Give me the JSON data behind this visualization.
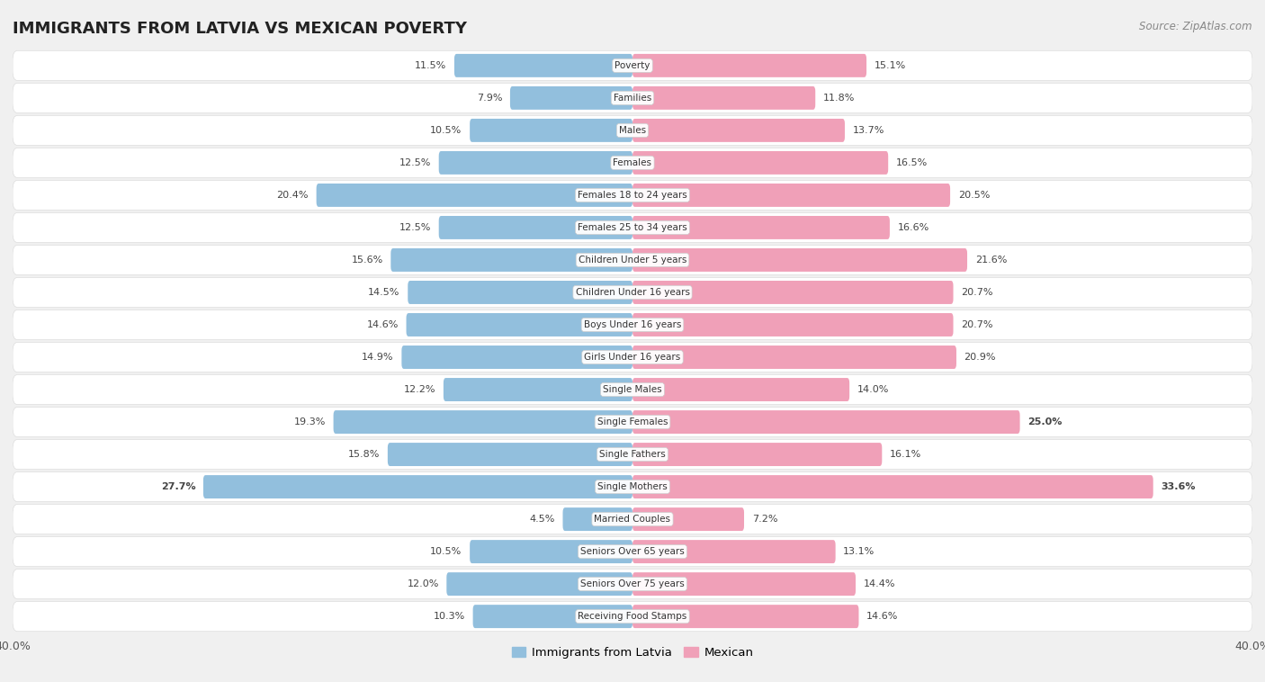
{
  "title": "IMMIGRANTS FROM LATVIA VS MEXICAN POVERTY",
  "source": "Source: ZipAtlas.com",
  "categories": [
    "Poverty",
    "Families",
    "Males",
    "Females",
    "Females 18 to 24 years",
    "Females 25 to 34 years",
    "Children Under 5 years",
    "Children Under 16 years",
    "Boys Under 16 years",
    "Girls Under 16 years",
    "Single Males",
    "Single Females",
    "Single Fathers",
    "Single Mothers",
    "Married Couples",
    "Seniors Over 65 years",
    "Seniors Over 75 years",
    "Receiving Food Stamps"
  ],
  "latvia_values": [
    11.5,
    7.9,
    10.5,
    12.5,
    20.4,
    12.5,
    15.6,
    14.5,
    14.6,
    14.9,
    12.2,
    19.3,
    15.8,
    27.7,
    4.5,
    10.5,
    12.0,
    10.3
  ],
  "mexican_values": [
    15.1,
    11.8,
    13.7,
    16.5,
    20.5,
    16.6,
    21.6,
    20.7,
    20.7,
    20.9,
    14.0,
    25.0,
    16.1,
    33.6,
    7.2,
    13.1,
    14.4,
    14.6
  ],
  "latvia_color": "#92bfdd",
  "mexican_color": "#f0a0b8",
  "latvia_bold_indices": [
    13
  ],
  "mexican_bold_indices": [
    11,
    13
  ],
  "xlim": 40.0,
  "background_color": "#f0f0f0",
  "row_bg_color": "#e0e0e0",
  "bar_height": 0.72,
  "legend_label_latvia": "Immigrants from Latvia",
  "legend_label_mexican": "Mexican"
}
